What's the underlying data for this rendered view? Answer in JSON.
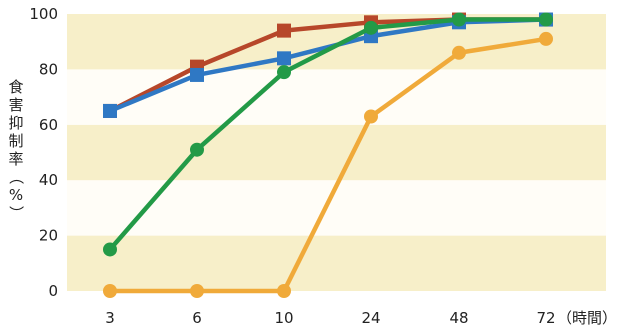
{
  "chart_data": {
    "type": "line",
    "title": "",
    "xlabel": "",
    "x_unit_label": "（時間）",
    "ylabel": "食害抑制率（%）",
    "ylabel_chars": [
      "食",
      "害",
      "抑",
      "制",
      "率",
      "（",
      "%",
      "）"
    ],
    "categories": [
      "3",
      "6",
      "10",
      "24",
      "48",
      "72"
    ],
    "ylim": [
      0,
      100
    ],
    "yticks": [
      0,
      20,
      40,
      60,
      80,
      100
    ],
    "grid": false,
    "legend": "none",
    "background_bands": [
      "#f7efc9",
      "#fffdf7"
    ],
    "series": [
      {
        "color": "#b7472a",
        "marker": "square",
        "values": [
          65,
          81,
          94,
          97,
          98,
          98
        ]
      },
      {
        "color": "#2f78c4",
        "marker": "square",
        "values": [
          65,
          78,
          84,
          92,
          97,
          98
        ]
      },
      {
        "color": "#239a47",
        "marker": "circle",
        "values": [
          15,
          51,
          79,
          95,
          98,
          98
        ]
      },
      {
        "color": "#f0aa3a",
        "marker": "circle",
        "values": [
          0,
          0,
          0,
          63,
          86,
          91
        ]
      }
    ]
  }
}
